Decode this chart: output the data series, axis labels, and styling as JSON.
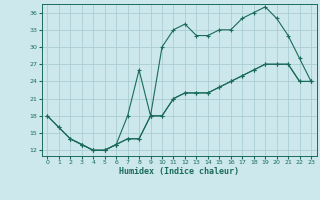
{
  "xlabel": "Humidex (Indice chaleur)",
  "bg_color": "#cce8ec",
  "grid_color": "#aacdd4",
  "line_color": "#1a6b5a",
  "xlim": [
    -0.5,
    23.5
  ],
  "ylim": [
    11,
    37.5
  ],
  "xticks": [
    0,
    1,
    2,
    3,
    4,
    5,
    6,
    7,
    8,
    9,
    10,
    11,
    12,
    13,
    14,
    15,
    16,
    17,
    18,
    19,
    20,
    21,
    22,
    23
  ],
  "yticks": [
    12,
    15,
    18,
    21,
    24,
    27,
    30,
    33,
    36
  ],
  "line1_x": [
    0,
    1,
    2,
    3,
    4,
    5,
    6,
    7,
    8,
    9,
    10,
    11,
    12,
    13,
    14,
    15,
    16,
    17,
    18,
    19,
    20,
    21,
    22,
    23
  ],
  "line1_y": [
    18,
    16,
    14,
    13,
    12,
    12,
    13,
    18,
    26,
    18,
    30,
    33,
    34,
    32,
    32,
    33,
    33,
    35,
    36,
    37,
    35,
    32,
    28,
    24
  ],
  "line2_x": [
    0,
    1,
    2,
    3,
    4,
    5,
    6,
    7,
    8,
    9,
    10,
    11,
    12,
    13,
    14,
    15,
    16,
    17,
    18,
    19,
    20,
    21,
    22,
    23
  ],
  "line2_y": [
    18,
    16,
    14,
    13,
    12,
    12,
    13,
    14,
    14,
    18,
    18,
    21,
    22,
    22,
    22,
    23,
    24,
    25,
    26,
    27,
    27,
    27,
    24,
    24
  ],
  "line3_x": [
    2,
    3,
    4,
    5,
    6,
    7,
    8,
    9,
    10,
    11,
    12,
    13,
    14,
    15,
    16,
    17,
    18,
    19,
    20,
    21,
    22,
    23
  ],
  "line3_y": [
    14,
    13,
    12,
    12,
    13,
    14,
    14,
    18,
    18,
    21,
    22,
    22,
    22,
    23,
    24,
    25,
    26,
    27,
    27,
    27,
    24,
    24
  ]
}
